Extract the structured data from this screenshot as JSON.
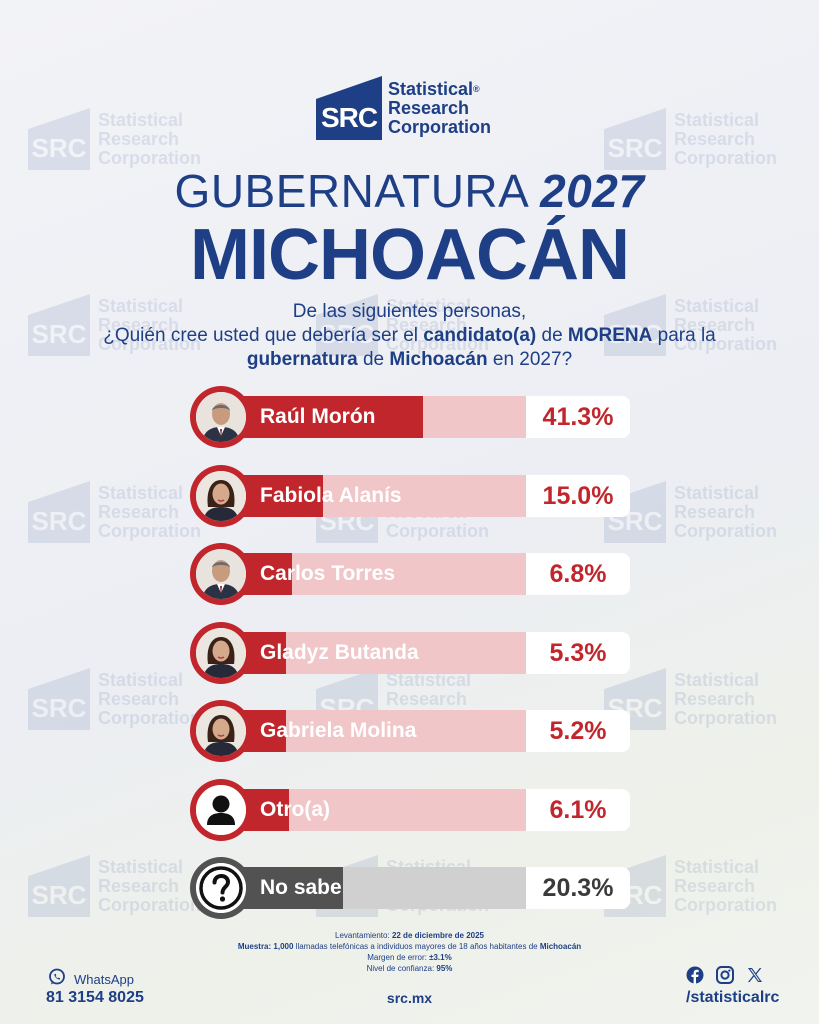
{
  "brand": {
    "logo_initials": "SRC",
    "name_line1": "Statistical",
    "name_line2": "Research",
    "name_line3": "Corporation",
    "registered_mark": "®"
  },
  "header": {
    "title_word": "GUBERNATURA",
    "title_year": "2027",
    "state": "MICHOACÁN"
  },
  "question": {
    "line1": "De las siguientes personas,",
    "line2_a": "¿Quién cree usted que debería ser el ",
    "line2_b": "candidato(a)",
    "line2_c": " de ",
    "line2_d": "MORENA",
    "line2_e": " para la",
    "line3_a": "gubernatura",
    "line3_b": " de ",
    "line3_c": "Michoacán",
    "line3_d": " en 2027?"
  },
  "chart_data": {
    "type": "bar",
    "orientation": "horizontal",
    "categories": [
      "Raúl Morón",
      "Fabiola Alanís",
      "Carlos Torres",
      "Gladyz Butanda",
      "Gabriela Molina",
      "Otro(a)",
      "No sabe"
    ],
    "values": [
      41.3,
      15.0,
      6.8,
      5.3,
      5.2,
      6.1,
      20.3
    ],
    "value_labels": [
      "41.3%",
      "15.0%",
      "6.8%",
      "5.3%",
      "5.2%",
      "6.1%",
      "20.3%"
    ],
    "unit": "%",
    "xlim": [
      0,
      100
    ],
    "colors": {
      "fill": "#c0262c",
      "track": "#f0c6c8",
      "fill_neutral": "#525252",
      "track_neutral": "#d0d0d0"
    },
    "avatar_icons": [
      "man-portrait-icon",
      "woman-portrait-icon",
      "man-portrait-icon",
      "woman-portrait-icon",
      "woman-portrait-icon",
      "person-silhouette-icon",
      "question-mark-icon"
    ]
  },
  "footnote": {
    "survey_label": "Levantamiento:",
    "survey_date": "22 de diciembre de 2025",
    "sample_label": "Muestra:",
    "sample_text_a": "1,000",
    "sample_text_b": " llamadas telefónicas a individuos mayores de 18 años habitantes de ",
    "sample_text_c": "Michoacán",
    "margin_label": "Margen de error:",
    "margin_value": "±3.1%",
    "confidence_label": "Nivel de confianza:",
    "confidence_value": "95%"
  },
  "footer": {
    "whatsapp_label": "WhatsApp",
    "phone": "81 3154 8025",
    "website": "src.mx",
    "social_handle": "/statisticalrc",
    "social_icons": [
      "facebook-icon",
      "instagram-icon",
      "x-icon"
    ]
  }
}
